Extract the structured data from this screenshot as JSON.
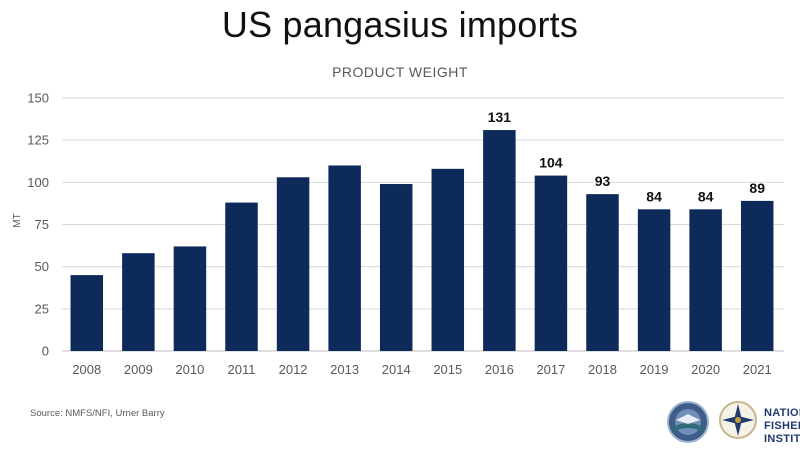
{
  "title": "US pangasius imports",
  "subtitle": "PRODUCT WEIGHT",
  "source": "Source: NMFS/NFI, Urner Barry",
  "logo_text": [
    "NATION",
    "FISHERI",
    "INSTITU"
  ],
  "colors": {
    "bar": "#0e2a5a",
    "grid": "#d9d9d9",
    "axis_text": "#595959",
    "label_text": "#111111"
  },
  "chart_data": {
    "type": "bar",
    "title": "US pangasius imports",
    "subtitle": "PRODUCT WEIGHT",
    "xlabel": "",
    "ylabel": "MT",
    "ylim": [
      0,
      150
    ],
    "yticks": [
      0,
      25,
      50,
      75,
      100,
      125,
      150
    ],
    "grid": true,
    "categories": [
      "2008",
      "2009",
      "2010",
      "2011",
      "2012",
      "2013",
      "2014",
      "2015",
      "2016",
      "2017",
      "2018",
      "2019",
      "2020",
      "2021"
    ],
    "values": [
      45,
      58,
      62,
      88,
      103,
      110,
      99,
      108,
      131,
      104,
      93,
      84,
      84,
      89
    ],
    "data_labels": [
      "",
      "",
      "",
      "",
      "",
      "",
      "",
      "",
      "131",
      "104",
      "93",
      "84",
      "84",
      "89"
    ]
  }
}
